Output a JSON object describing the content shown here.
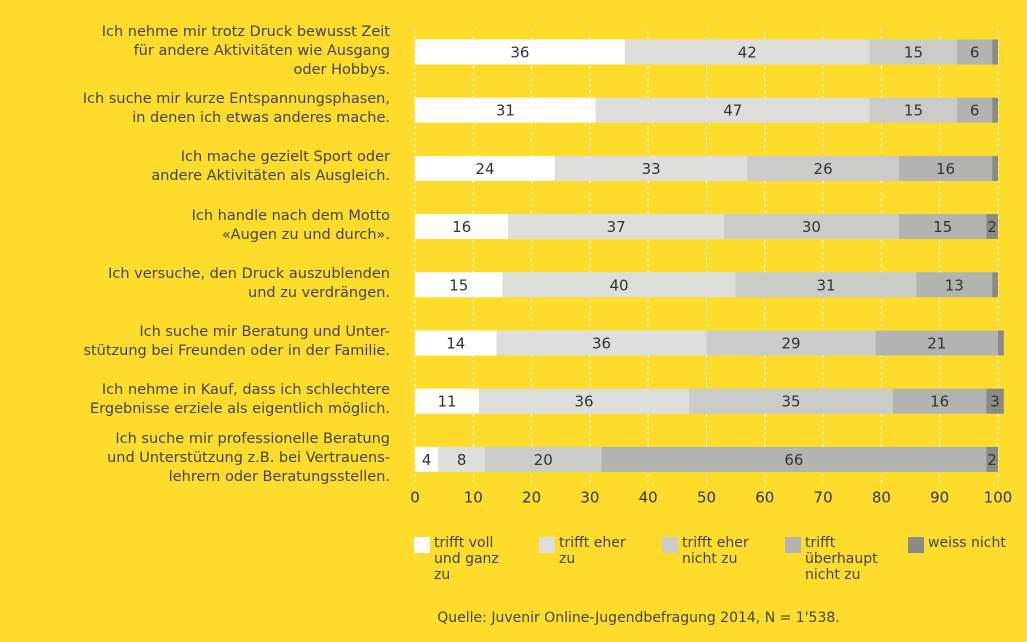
{
  "chart_data": {
    "type": "stacked-bar-horizontal",
    "categories": [
      "Ich nehme mir trotz Druck bewusst Zeit\nfür andere Aktivitäten wie Ausgang\noder Hobbys.",
      "Ich suche mir kurze Entspannungsphasen,\nin denen ich etwas anderes mache.",
      "Ich mache gezielt Sport oder\nandere Aktivitäten als Ausgleich.",
      "Ich handle nach dem Motto\n«Augen zu und durch».",
      "Ich versuche, den Druck auszublenden\nund zu verdrängen.",
      "Ich suche mir Beratung und Unter-\nstützung bei Freunden oder in der Familie.",
      "Ich nehme in Kauf, dass ich schlechtere\nErgebnisse erziele als eigentlich möglich.",
      "Ich suche mir professionelle Beratung\nund Unterstützung z.B. bei Vertrauens-\nlehrern oder Beratungsstellen."
    ],
    "series": [
      {
        "name": "trifft voll und ganz zu",
        "color": "#ffffff",
        "values": [
          36,
          31,
          24,
          16,
          15,
          14,
          11,
          4
        ]
      },
      {
        "name": "trifft eher zu",
        "color": "#dededc",
        "values": [
          42,
          47,
          33,
          37,
          40,
          36,
          36,
          8
        ]
      },
      {
        "name": "trifft eher nicht zu",
        "color": "#cbcbc9",
        "values": [
          15,
          15,
          26,
          30,
          31,
          29,
          35,
          20
        ]
      },
      {
        "name": "trifft überhaupt nicht zu",
        "color": "#b3b3b1",
        "values": [
          6,
          6,
          16,
          15,
          13,
          21,
          16,
          66
        ]
      },
      {
        "name": "weiss nicht",
        "color": "#8a8a88",
        "values": [
          1,
          1,
          1,
          2,
          1,
          1,
          3,
          2
        ]
      }
    ],
    "xlim": [
      0,
      100
    ],
    "xticks": [
      0,
      10,
      20,
      30,
      40,
      50,
      60,
      70,
      80,
      90,
      100
    ],
    "grid": true,
    "source": "Quelle: Juvenir Online-Jugendbefragung 2014, N = 1'538."
  }
}
